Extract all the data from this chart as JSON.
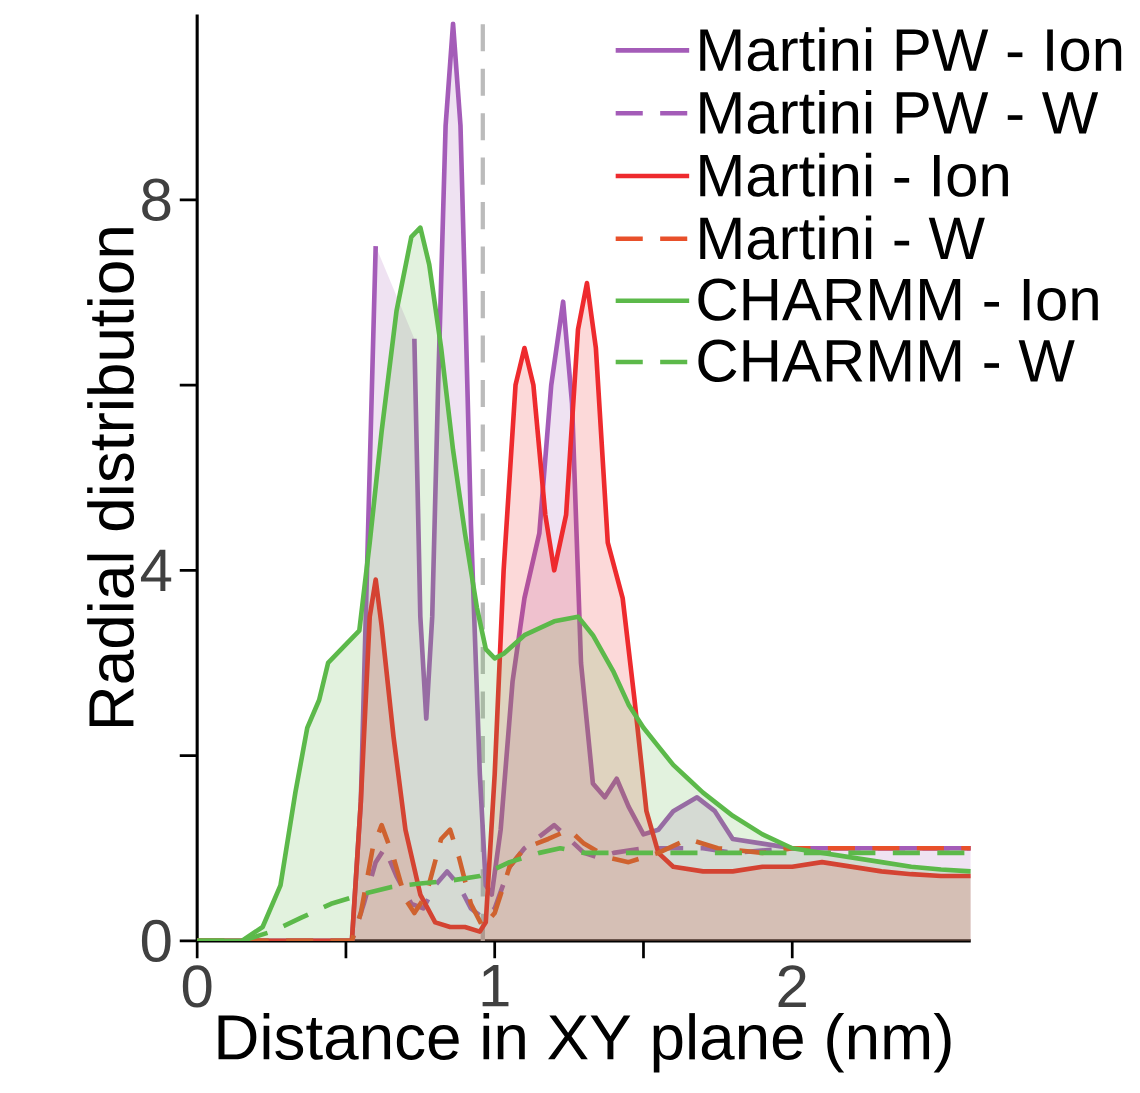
{
  "chart_data": {
    "type": "area",
    "xlabel": "Distance in XY plane (nm)",
    "ylabel": "Radial distribution",
    "xlim": [
      0,
      2.6
    ],
    "ylim": [
      0,
      10
    ],
    "xticks": [
      0,
      1,
      2
    ],
    "yticks": [
      0,
      4,
      8
    ],
    "legend": "top right",
    "grid": false,
    "ref_lines": [
      {
        "axis": "x",
        "value": 0.96,
        "color": "#bbbbbb",
        "line_style": "dashed"
      }
    ],
    "series": [
      {
        "name": "Martini PW - Ion",
        "color": "#a45cb8",
        "line_style": "solid",
        "x": [
          0,
          0.52,
          0.55,
          0.57,
          0.6,
          0.62,
          0.71,
          0.73,
          0.75,
          0.77,
          0.79,
          0.81,
          0.835,
          0.86,
          0.885,
          0.9,
          0.92,
          0.95,
          0.97,
          0.99,
          1.02,
          1.06,
          1.1,
          1.15,
          1.19,
          1.23,
          1.26,
          1.29,
          1.33,
          1.37,
          1.41,
          1.45,
          1.5,
          1.55,
          1.6,
          1.68,
          1.74,
          1.8,
          1.9,
          2.0,
          2.2,
          2.4,
          2.6
        ],
        "values": [
          0,
          0,
          1.5,
          3.9,
          7.5,
          null,
          null,
          6.5,
          3.5,
          2.4,
          3.5,
          6.0,
          8.8,
          9.9,
          8.8,
          7.0,
          4.5,
          1.8,
          0.6,
          0.5,
          1.2,
          2.8,
          3.7,
          4.4,
          6.0,
          6.9,
          5.8,
          3.0,
          1.7,
          1.55,
          1.75,
          1.45,
          1.15,
          1.2,
          1.4,
          1.55,
          1.4,
          1.1,
          1.05,
          1.0,
          1.0,
          1.0,
          1.0
        ]
      },
      {
        "name": "Martini PW - W",
        "type": "line",
        "color": "#a45cb8",
        "line_style": "dashed",
        "x": [
          0,
          0.52,
          0.56,
          0.6,
          0.63,
          0.67,
          0.72,
          0.76,
          0.8,
          0.84,
          0.88,
          0.92,
          0.96,
          1.0,
          1.05,
          1.1,
          1.16,
          1.2,
          1.25,
          1.3,
          1.35,
          1.4,
          1.5,
          1.6,
          1.7,
          1.8,
          2.0,
          2.2,
          2.4,
          2.6
        ],
        "values": [
          0,
          0,
          0.4,
          0.85,
          1.0,
          0.7,
          0.4,
          0.35,
          0.6,
          0.75,
          0.6,
          0.35,
          0.25,
          0.35,
          0.8,
          1.0,
          1.15,
          1.25,
          1.1,
          0.95,
          0.9,
          0.95,
          1.0,
          1.0,
          1.0,
          0.95,
          1.0,
          1.0,
          1.0,
          1.0
        ]
      },
      {
        "name": "Martini - Ion",
        "color": "#ee2a2e",
        "line_style": "solid",
        "x": [
          0,
          0.52,
          0.55,
          0.58,
          0.6,
          0.62,
          0.66,
          0.7,
          0.75,
          0.8,
          0.85,
          0.9,
          0.95,
          0.97,
          1.0,
          1.03,
          1.07,
          1.1,
          1.13,
          1.17,
          1.2,
          1.24,
          1.28,
          1.31,
          1.34,
          1.38,
          1.43,
          1.47,
          1.51,
          1.55,
          1.6,
          1.7,
          1.8,
          1.9,
          2.0,
          2.1,
          2.2,
          2.3,
          2.4,
          2.5,
          2.6
        ],
        "values": [
          0,
          0,
          1.5,
          3.5,
          3.9,
          3.4,
          2.2,
          1.2,
          0.5,
          0.2,
          0.15,
          0.15,
          0.1,
          0.2,
          1.8,
          4.0,
          6.0,
          6.4,
          6.0,
          4.6,
          4.0,
          4.6,
          6.6,
          7.1,
          6.4,
          4.3,
          3.7,
          2.6,
          1.4,
          0.95,
          0.8,
          0.75,
          0.75,
          0.8,
          0.8,
          0.85,
          0.8,
          0.75,
          0.72,
          0.7,
          0.7
        ]
      },
      {
        "name": "Martini - W",
        "type": "line",
        "color": "#e8502a",
        "line_style": "dashed",
        "x": [
          0,
          0.52,
          0.55,
          0.59,
          0.62,
          0.66,
          0.7,
          0.73,
          0.77,
          0.82,
          0.85,
          0.88,
          0.92,
          0.96,
          1.0,
          1.05,
          1.1,
          1.18,
          1.25,
          1.3,
          1.38,
          1.45,
          1.55,
          1.65,
          1.75,
          1.9,
          2.0,
          2.2,
          2.4,
          2.6
        ],
        "values": [
          0,
          0,
          0.3,
          1.0,
          1.25,
          0.9,
          0.45,
          0.3,
          0.5,
          1.1,
          1.2,
          0.9,
          0.4,
          0.15,
          0.3,
          0.8,
          1.0,
          1.1,
          1.2,
          1.05,
          0.9,
          0.85,
          0.95,
          1.1,
          1.0,
          0.95,
          1.0,
          1.0,
          1.0,
          1.0
        ]
      },
      {
        "name": "CHARMM - Ion",
        "color": "#5cb94a",
        "line_style": "solid",
        "x": [
          0,
          0.15,
          0.22,
          0.28,
          0.33,
          0.37,
          0.41,
          0.44,
          0.47,
          0.5,
          0.545,
          0.58,
          0.62,
          0.67,
          0.72,
          0.75,
          0.78,
          0.82,
          0.86,
          0.9,
          0.94,
          0.97,
          1.0,
          1.03,
          1.1,
          1.2,
          1.28,
          1.33,
          1.4,
          1.45,
          1.5,
          1.55,
          1.6,
          1.65,
          1.7,
          1.8,
          1.9,
          2.0,
          2.1,
          2.2,
          2.3,
          2.4,
          2.5,
          2.6
        ],
        "values": [
          0,
          0,
          0.15,
          0.6,
          1.6,
          2.3,
          2.6,
          3.0,
          3.1,
          3.2,
          3.35,
          4.3,
          5.5,
          6.8,
          7.6,
          7.7,
          7.3,
          6.4,
          5.3,
          4.4,
          3.6,
          3.15,
          3.05,
          3.1,
          3.3,
          3.45,
          3.5,
          3.3,
          2.9,
          2.55,
          2.3,
          2.1,
          1.9,
          1.75,
          1.6,
          1.35,
          1.15,
          1.0,
          0.95,
          0.9,
          0.85,
          0.8,
          0.77,
          0.75
        ]
      },
      {
        "name": "CHARMM - W",
        "type": "line",
        "color": "#5cb94a",
        "line_style": "dashed",
        "x": [
          0,
          0.15,
          0.25,
          0.35,
          0.45,
          0.55,
          0.65,
          0.75,
          0.85,
          0.95,
          1.05,
          1.15,
          1.22,
          1.3,
          1.45,
          1.6,
          1.8,
          2.0,
          2.2,
          2.4,
          2.6
        ],
        "values": [
          0,
          0,
          0.1,
          0.25,
          0.4,
          0.5,
          0.58,
          0.62,
          0.65,
          0.7,
          0.85,
          0.95,
          1.0,
          0.95,
          0.95,
          0.95,
          0.95,
          0.95,
          0.95,
          0.95,
          0.95
        ]
      }
    ]
  }
}
